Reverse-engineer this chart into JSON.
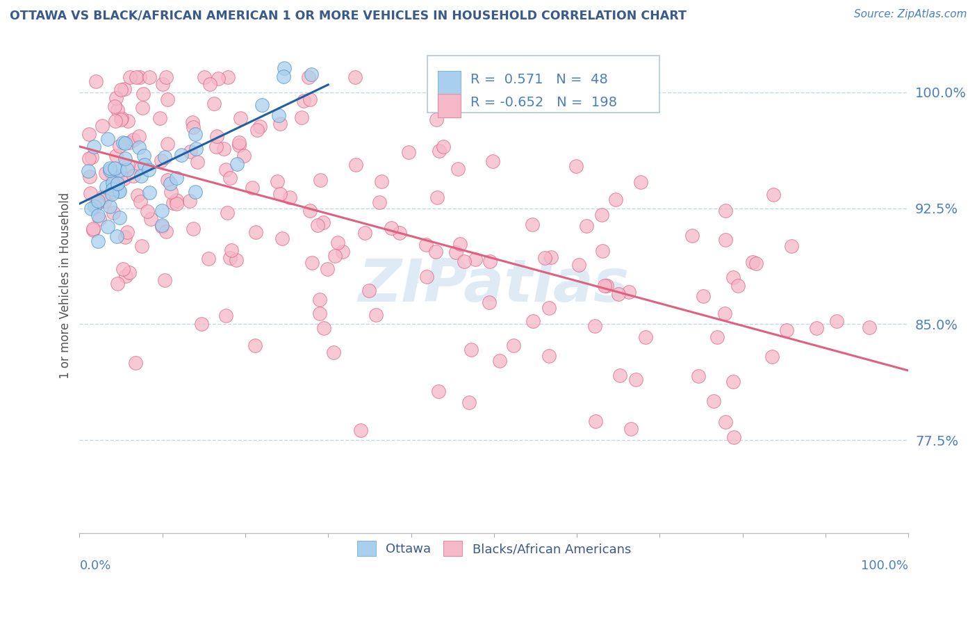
{
  "title": "OTTAWA VS BLACK/AFRICAN AMERICAN 1 OR MORE VEHICLES IN HOUSEHOLD CORRELATION CHART",
  "source": "Source: ZipAtlas.com",
  "ylabel": "1 or more Vehicles in Household",
  "yticks": [
    0.775,
    0.85,
    0.925,
    1.0
  ],
  "ytick_labels": [
    "77.5%",
    "85.0%",
    "92.5%",
    "100.0%"
  ],
  "xlim": [
    0.0,
    1.0
  ],
  "ylim": [
    0.715,
    1.035
  ],
  "watermark": "ZIPatlas",
  "legend_box": {
    "r1": 0.571,
    "n1": 48,
    "r2": -0.652,
    "n2": 198
  },
  "blue_fill": "#a8d0ee",
  "pink_fill": "#f5b8c8",
  "blue_edge": "#4a8fc4",
  "pink_edge": "#e06080",
  "blue_line": "#2060a0",
  "pink_line": "#e06080",
  "title_color": "#3a5a8a",
  "axis_label_color": "#4a80c0",
  "background_color": "#ffffff",
  "grid_color": "#c0d8ec",
  "ottawa_trend": [
    0.0,
    0.3,
    0.928,
    1.005
  ],
  "pink_trend": [
    0.0,
    1.0,
    0.965,
    0.82
  ]
}
